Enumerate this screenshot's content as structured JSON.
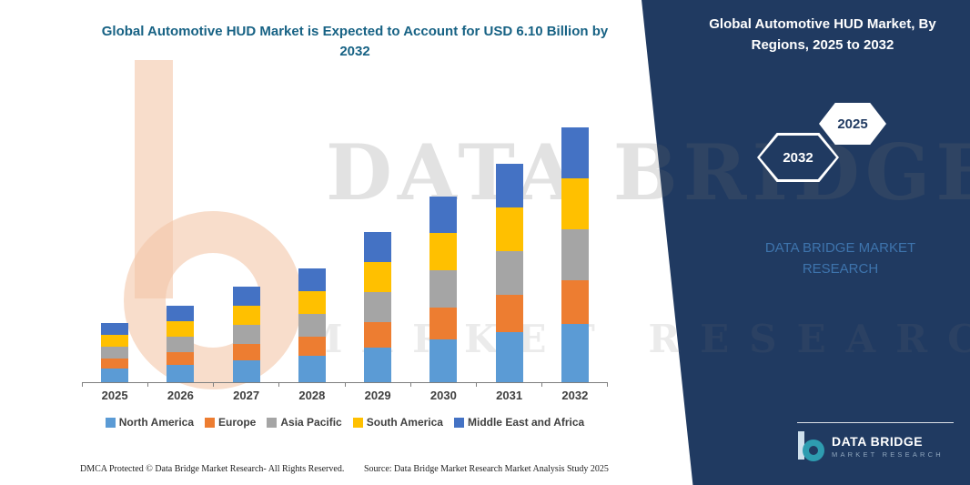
{
  "header": {
    "note": ""
  },
  "panel": {
    "title": "Global Automotive HUD Market, By Regions, 2025 to 2032",
    "badge_back": "2032",
    "badge_front": "2025",
    "brand_text": "DATA BRIDGE MARKET RESEARCH",
    "logo_name": "DATA BRIDGE",
    "logo_sub": "MARKET RESEARCH"
  },
  "watermark": {
    "line1": "DATA BRIDGE",
    "line2": "MARKET RESEARCH"
  },
  "footer": {
    "dmca": "DMCA Protected © Data Bridge Market Research- All Rights Reserved.",
    "source": "Source: Data Bridge Market Research Market Analysis Study 2025"
  },
  "chart_data": {
    "type": "bar",
    "stacked": true,
    "title": "Global Automotive HUD Market is Expected to Account for USD 6.10 Billion by 2032",
    "unit": "USD Billion",
    "categories": [
      "2025",
      "2026",
      "2027",
      "2028",
      "2029",
      "2030",
      "2031",
      "2032"
    ],
    "series": [
      {
        "name": "North America",
        "color": "#5B9BD5",
        "values": [
          0.32,
          0.42,
          0.52,
          0.62,
          0.82,
          1.02,
          1.2,
          1.4
        ]
      },
      {
        "name": "Europe",
        "color": "#ED7D31",
        "values": [
          0.24,
          0.31,
          0.39,
          0.46,
          0.61,
          0.75,
          0.89,
          1.04
        ]
      },
      {
        "name": "Asia Pacific",
        "color": "#A5A5A5",
        "values": [
          0.28,
          0.37,
          0.45,
          0.54,
          0.71,
          0.89,
          1.05,
          1.22
        ]
      },
      {
        "name": "South America",
        "color": "#FFC000",
        "values": [
          0.28,
          0.37,
          0.45,
          0.54,
          0.71,
          0.89,
          1.05,
          1.22
        ]
      },
      {
        "name": "Middle East and Africa",
        "color": "#4472C4",
        "values": [
          0.28,
          0.37,
          0.46,
          0.54,
          0.72,
          0.88,
          1.04,
          1.22
        ]
      }
    ],
    "totals": [
      1.4,
      1.84,
      2.27,
      2.7,
      3.57,
      4.43,
      5.23,
      6.1
    ],
    "ylim": [
      0,
      6.5
    ],
    "grid": false,
    "legend_position": "bottom"
  }
}
